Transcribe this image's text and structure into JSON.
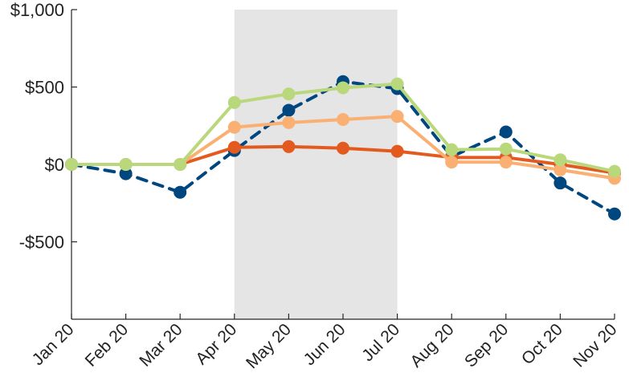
{
  "chart_data": {
    "type": "line",
    "categories": [
      "Jan 20",
      "Feb 20",
      "Mar 20",
      "Apr 20",
      "May 20",
      "Jun 20",
      "Jul 20",
      "Aug 20",
      "Sep 20",
      "Oct 20",
      "Nov 20"
    ],
    "ylim": [
      -1000,
      1000
    ],
    "yticks": [
      1000,
      500,
      0,
      -500
    ],
    "ytick_labels": [
      "$1,000",
      "$500",
      "$0",
      "-$500"
    ],
    "grid": false,
    "legend": "none",
    "shaded_region": {
      "from": "Apr 20",
      "to": "Jul 20",
      "color": "#e5e5e5"
    },
    "series": [
      {
        "values": [
          0,
          -60,
          -180,
          90,
          350,
          535,
          490,
          50,
          210,
          -120,
          -320
        ],
        "color": "#00467f",
        "style": "dashed"
      },
      {
        "values": [
          0,
          0,
          0,
          110,
          115,
          105,
          85,
          45,
          45,
          0,
          -55
        ],
        "color": "#e35a1f",
        "style": "solid"
      },
      {
        "values": [
          0,
          0,
          0,
          240,
          270,
          290,
          310,
          15,
          15,
          -35,
          -90
        ],
        "color": "#fbb073",
        "style": "solid"
      },
      {
        "values": [
          0,
          0,
          0,
          400,
          455,
          495,
          520,
          95,
          100,
          30,
          -45
        ],
        "color": "#b9d77b",
        "style": "solid"
      }
    ]
  }
}
